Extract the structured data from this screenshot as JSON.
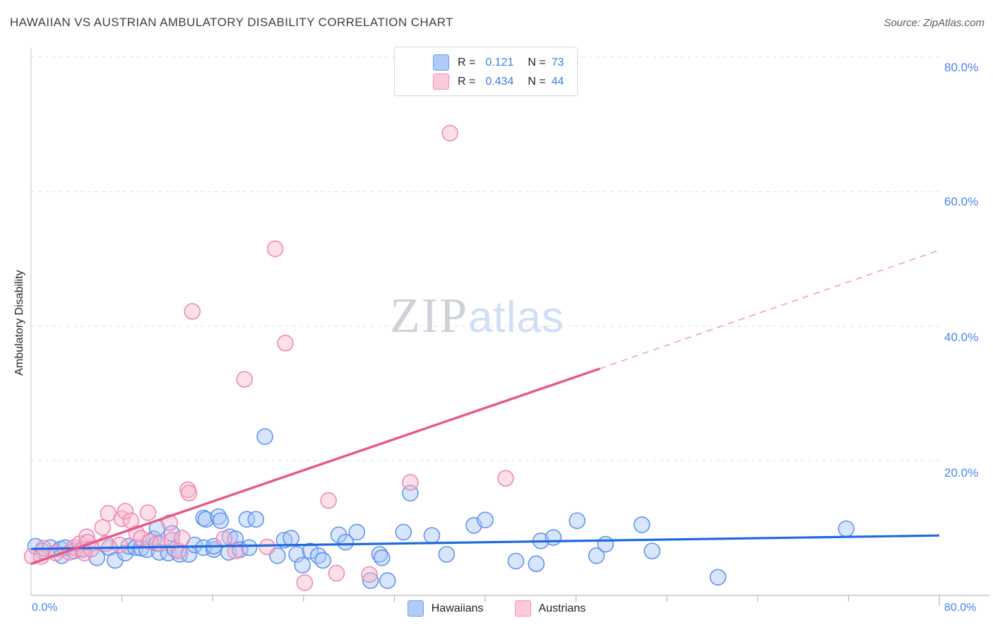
{
  "header": {
    "title": "HAWAIIAN VS AUSTRIAN AMBULATORY DISABILITY CORRELATION CHART",
    "source": "Source: ZipAtlas.com"
  },
  "legend_box": {
    "rows": [
      {
        "r_label": "R =",
        "r_value": "0.121",
        "n_label": "N =",
        "n_value": "73"
      },
      {
        "r_label": "R =",
        "r_value": "0.434",
        "n_label": "N =",
        "n_value": "44"
      }
    ]
  },
  "watermark": {
    "zip": "ZIP",
    "atlas": "atlas"
  },
  "y_axis": {
    "label": "Ambulatory Disability",
    "tick_labels": [
      "80.0%",
      "60.0%",
      "40.0%",
      "20.0%"
    ]
  },
  "x_axis": {
    "min_label": "0.0%",
    "max_label": "80.0%"
  },
  "bottom_legend": [
    {
      "label": "Hawaiians"
    },
    {
      "label": "Austrians"
    }
  ],
  "colors": {
    "hawaiian_fill": "#a8c7f7",
    "hawaiian_stroke": "#5b8def",
    "hawaiian_trend": "#1f6ae0",
    "austrian_fill": "#f7b8cf",
    "austrian_stroke": "#ef85ae",
    "austrian_trend": "#e8578a",
    "axis_label_blue": "#4a84ee",
    "gridline": "#dcdfe3"
  },
  "chart_data": {
    "type": "scatter",
    "title": "HAWAIIAN VS AUSTRIAN AMBULATORY DISABILITY CORRELATION CHART",
    "xlabel": "",
    "ylabel": "Ambulatory Disability",
    "xlim": [
      0,
      80
    ],
    "ylim": [
      0,
      80
    ],
    "x_ticks_every": 8,
    "y_gridlines": [
      20,
      40,
      60,
      80
    ],
    "legend_position": "bottom-center",
    "series": [
      {
        "name": "Hawaiians",
        "R": 0.121,
        "N": 73,
        "points": [
          [
            0.4,
            7.3
          ],
          [
            1.0,
            6.6
          ],
          [
            1.7,
            7.1
          ],
          [
            2.6,
            6.9
          ],
          [
            2.7,
            5.9
          ],
          [
            3.0,
            7.1
          ],
          [
            3.8,
            6.6
          ],
          [
            4.5,
            6.8
          ],
          [
            5.8,
            5.6
          ],
          [
            6.9,
            7.1
          ],
          [
            7.4,
            5.2
          ],
          [
            8.3,
            6.3
          ],
          [
            8.6,
            7.3
          ],
          [
            9.2,
            7.1
          ],
          [
            9.7,
            7.0
          ],
          [
            10.2,
            6.8
          ],
          [
            10.8,
            8.4
          ],
          [
            11.1,
            7.7
          ],
          [
            11.1,
            10.0
          ],
          [
            11.3,
            6.4
          ],
          [
            12.1,
            6.3
          ],
          [
            12.4,
            9.2
          ],
          [
            12.7,
            6.8
          ],
          [
            13.1,
            6.1
          ],
          [
            13.9,
            6.1
          ],
          [
            14.4,
            7.5
          ],
          [
            15.2,
            7.1
          ],
          [
            15.2,
            11.5
          ],
          [
            15.4,
            11.3
          ],
          [
            16.1,
            6.8
          ],
          [
            16.1,
            7.3
          ],
          [
            16.5,
            11.7
          ],
          [
            16.7,
            11.1
          ],
          [
            17.4,
            6.4
          ],
          [
            17.5,
            8.7
          ],
          [
            18.0,
            8.4
          ],
          [
            18.4,
            6.8
          ],
          [
            19.0,
            11.3
          ],
          [
            19.2,
            7.1
          ],
          [
            19.8,
            11.3
          ],
          [
            20.6,
            23.6
          ],
          [
            21.7,
            5.9
          ],
          [
            22.3,
            8.2
          ],
          [
            22.9,
            8.5
          ],
          [
            23.4,
            6.1
          ],
          [
            23.9,
            4.5
          ],
          [
            24.6,
            6.6
          ],
          [
            25.3,
            5.9
          ],
          [
            25.7,
            5.2
          ],
          [
            27.1,
            9.0
          ],
          [
            27.7,
            7.9
          ],
          [
            28.7,
            9.4
          ],
          [
            29.9,
            2.2
          ],
          [
            30.7,
            6.1
          ],
          [
            30.9,
            5.6
          ],
          [
            31.4,
            2.2
          ],
          [
            32.8,
            9.4
          ],
          [
            33.4,
            15.2
          ],
          [
            35.3,
            8.9
          ],
          [
            36.6,
            6.1
          ],
          [
            39.0,
            10.4
          ],
          [
            40.0,
            11.2
          ],
          [
            42.7,
            5.1
          ],
          [
            44.5,
            4.7
          ],
          [
            44.9,
            8.1
          ],
          [
            46.0,
            8.6
          ],
          [
            48.1,
            11.1
          ],
          [
            49.8,
            5.9
          ],
          [
            50.6,
            7.6
          ],
          [
            53.8,
            10.5
          ],
          [
            54.7,
            6.6
          ],
          [
            60.5,
            2.7
          ],
          [
            71.8,
            9.9
          ]
        ],
        "trend": {
          "solid": [
            [
              0,
              6.9
            ],
            [
              80,
              8.9
            ]
          ]
        }
      },
      {
        "name": "Austrians",
        "R": 0.434,
        "N": 44,
        "points": [
          [
            0.1,
            5.8
          ],
          [
            0.9,
            5.8
          ],
          [
            1.1,
            7.0
          ],
          [
            2.2,
            6.3
          ],
          [
            3.4,
            6.4
          ],
          [
            3.8,
            7.1
          ],
          [
            4.3,
            7.7
          ],
          [
            4.6,
            6.9
          ],
          [
            4.7,
            6.3
          ],
          [
            4.9,
            8.7
          ],
          [
            5.0,
            7.9
          ],
          [
            5.3,
            6.9
          ],
          [
            6.3,
            10.1
          ],
          [
            6.6,
            7.7
          ],
          [
            6.8,
            12.2
          ],
          [
            7.8,
            7.5
          ],
          [
            8.0,
            11.4
          ],
          [
            8.3,
            12.5
          ],
          [
            8.8,
            11.1
          ],
          [
            9.3,
            9.2
          ],
          [
            9.7,
            8.5
          ],
          [
            10.3,
            12.3
          ],
          [
            10.5,
            8.0
          ],
          [
            11.4,
            7.7
          ],
          [
            12.2,
            10.8
          ],
          [
            12.4,
            8.2
          ],
          [
            13.0,
            6.6
          ],
          [
            13.3,
            8.5
          ],
          [
            13.8,
            15.7
          ],
          [
            13.9,
            15.2
          ],
          [
            14.2,
            42.2
          ],
          [
            17.0,
            8.4
          ],
          [
            18.0,
            6.6
          ],
          [
            18.8,
            32.1
          ],
          [
            20.8,
            7.2
          ],
          [
            21.5,
            51.5
          ],
          [
            22.4,
            37.5
          ],
          [
            24.1,
            1.9
          ],
          [
            26.2,
            14.1
          ],
          [
            26.9,
            3.3
          ],
          [
            29.8,
            3.1
          ],
          [
            33.4,
            16.8
          ],
          [
            36.9,
            68.7
          ],
          [
            41.8,
            17.4
          ]
        ],
        "trend": {
          "solid": [
            [
              0,
              4.7
            ],
            [
              50.1,
              33.7
            ]
          ],
          "dashed": [
            [
              50.1,
              33.7
            ],
            [
              80,
              51.3
            ]
          ]
        }
      }
    ]
  }
}
